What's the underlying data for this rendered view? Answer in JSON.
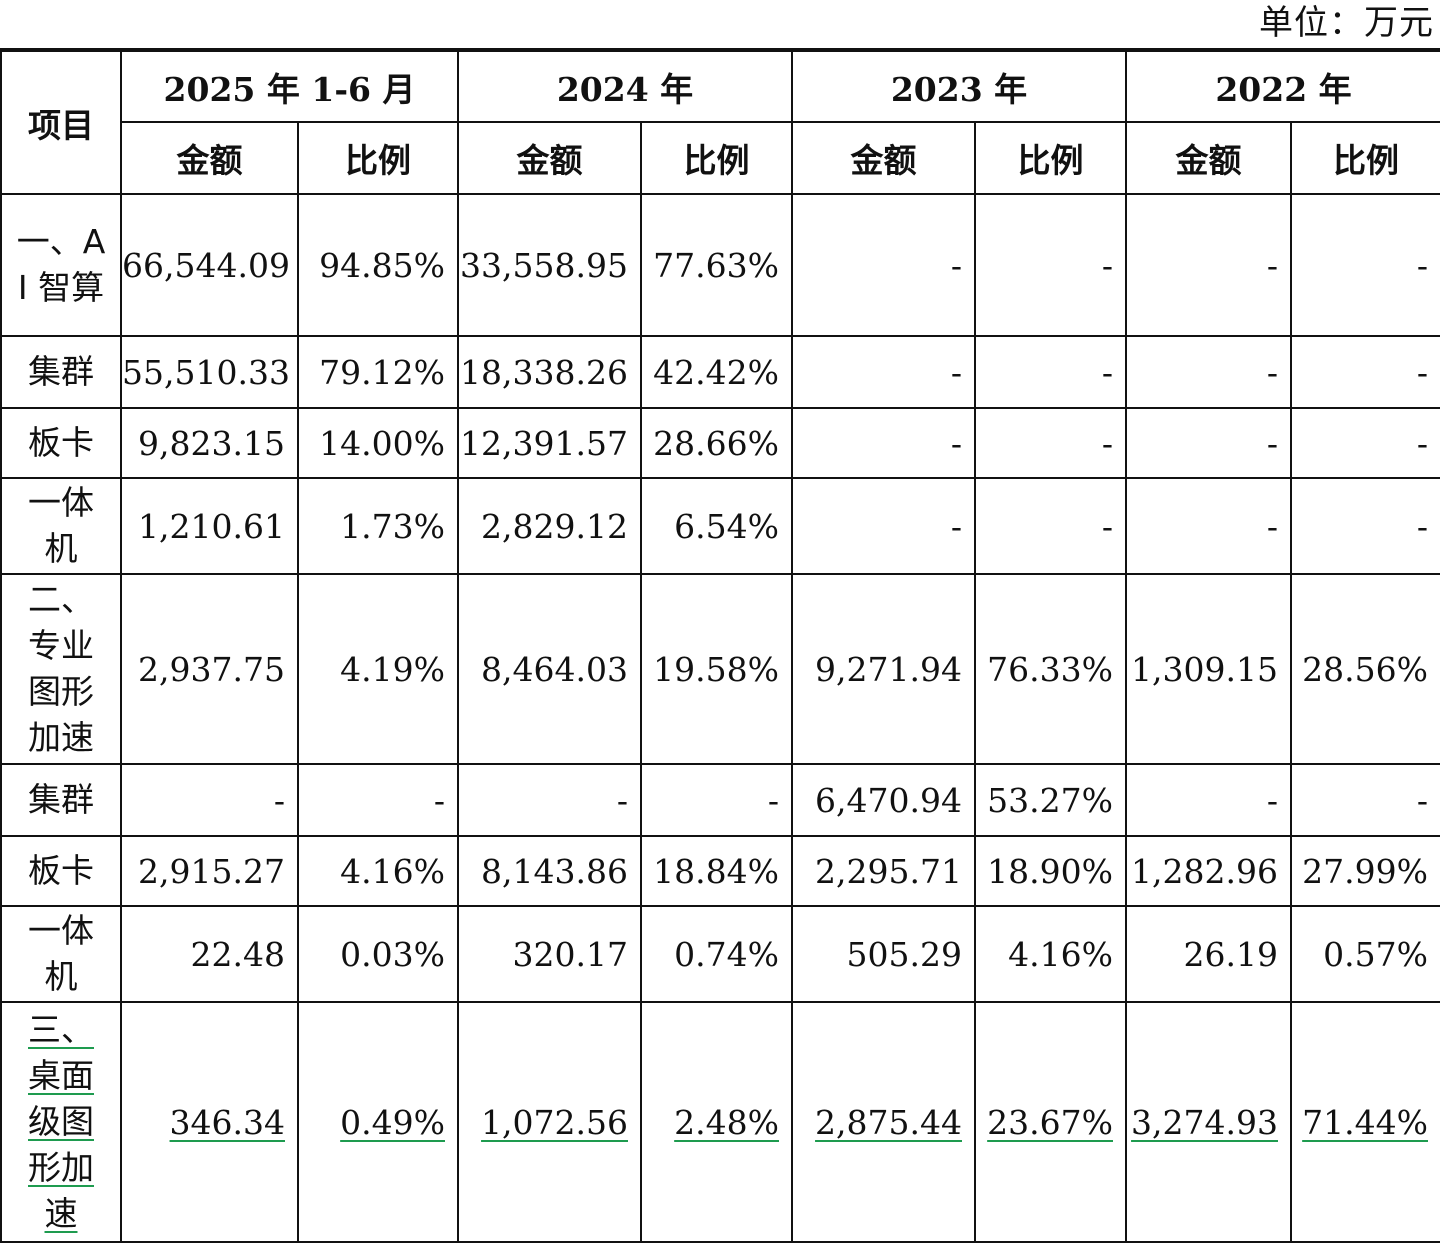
{
  "unit_label": "单位：万元",
  "header": {
    "item_label": "项目",
    "periods": [
      "2025 年 1-6 月",
      "2024 年",
      "2023 年",
      "2022 年"
    ],
    "amount_label": "金额",
    "ratio_label": "比例"
  },
  "rows": [
    {
      "label": "一、AI 智算",
      "values": [
        "66,544.09",
        "94.85%",
        "33,558.95",
        "77.63%",
        "-",
        "-",
        "-",
        "-"
      ]
    },
    {
      "label": "集群",
      "values": [
        "55,510.33",
        "79.12%",
        "18,338.26",
        "42.42%",
        "-",
        "-",
        "-",
        "-"
      ]
    },
    {
      "label": "板卡",
      "values": [
        "9,823.15",
        "14.00%",
        "12,391.57",
        "28.66%",
        "-",
        "-",
        "-",
        "-"
      ]
    },
    {
      "label": "一体机",
      "values": [
        "1,210.61",
        "1.73%",
        "2,829.12",
        "6.54%",
        "-",
        "-",
        "-",
        "-"
      ]
    },
    {
      "label": "二、专业图形加速",
      "values": [
        "2,937.75",
        "4.19%",
        "8,464.03",
        "19.58%",
        "9,271.94",
        "76.33%",
        "1,309.15",
        "28.56%"
      ]
    },
    {
      "label": "集群",
      "values": [
        "-",
        "-",
        "-",
        "-",
        "6,470.94",
        "53.27%",
        "-",
        "-"
      ]
    },
    {
      "label": "板卡",
      "values": [
        "2,915.27",
        "4.16%",
        "8,143.86",
        "18.84%",
        "2,295.71",
        "18.90%",
        "1,282.96",
        "27.99%"
      ]
    },
    {
      "label": "一体机",
      "values": [
        "22.48",
        "0.03%",
        "320.17",
        "0.74%",
        "505.29",
        "4.16%",
        "26.19",
        "0.57%"
      ]
    },
    {
      "label": "三、桌面级图形加速",
      "values": [
        "346.34",
        "0.49%",
        "1,072.56",
        "2.48%",
        "2,875.44",
        "23.67%",
        "3,274.93",
        "71.44%"
      ]
    }
  ]
}
